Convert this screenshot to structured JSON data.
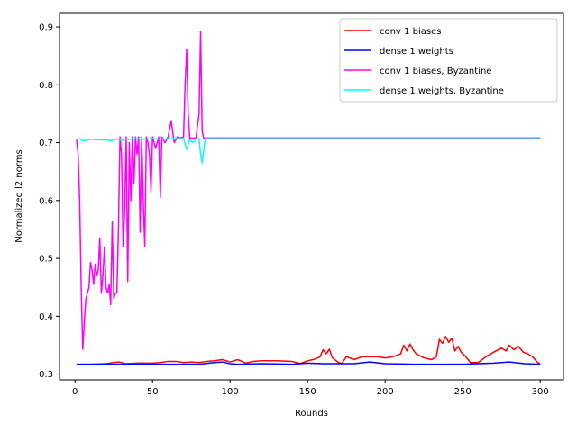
{
  "chart_data": {
    "type": "line",
    "title": "",
    "xlabel": "Rounds",
    "ylabel": "Normalized l2 norms",
    "xlim": [
      -10,
      315
    ],
    "ylim": [
      0.29,
      0.925
    ],
    "xticks": [
      0,
      50,
      100,
      150,
      200,
      250,
      300
    ],
    "yticks": [
      0.3,
      0.4,
      0.5,
      0.6,
      0.7,
      0.8,
      0.9
    ],
    "xtick_labels": [
      "0",
      "50",
      "100",
      "150",
      "200",
      "250",
      "300"
    ],
    "ytick_labels": [
      "0.3",
      "0.4",
      "0.5",
      "0.6",
      "0.7",
      "0.8",
      "0.9"
    ],
    "grid": false,
    "legend_position": "top-right",
    "series": [
      {
        "name": "conv 1 biases",
        "color": "#ff0000",
        "x": [
          1,
          10,
          20,
          28,
          30,
          32,
          40,
          50,
          55,
          60,
          65,
          70,
          75,
          80,
          85,
          90,
          95,
          100,
          105,
          110,
          115,
          120,
          130,
          140,
          145,
          150,
          155,
          158,
          160,
          162,
          164,
          166,
          170,
          172,
          175,
          180,
          185,
          190,
          195,
          200,
          205,
          210,
          212,
          214,
          216,
          218,
          220,
          225,
          230,
          233,
          235,
          237,
          239,
          241,
          243,
          245,
          247,
          249,
          252,
          255,
          260,
          265,
          270,
          275,
          278,
          280,
          283,
          286,
          289,
          292,
          295,
          298,
          300
        ],
        "y": [
          0.317,
          0.317,
          0.318,
          0.321,
          0.32,
          0.318,
          0.319,
          0.319,
          0.32,
          0.322,
          0.322,
          0.32,
          0.321,
          0.32,
          0.322,
          0.323,
          0.325,
          0.321,
          0.325,
          0.319,
          0.322,
          0.323,
          0.323,
          0.322,
          0.318,
          0.323,
          0.326,
          0.33,
          0.342,
          0.335,
          0.343,
          0.328,
          0.32,
          0.318,
          0.33,
          0.325,
          0.33,
          0.33,
          0.33,
          0.328,
          0.33,
          0.335,
          0.35,
          0.34,
          0.352,
          0.342,
          0.335,
          0.328,
          0.325,
          0.33,
          0.36,
          0.353,
          0.365,
          0.355,
          0.362,
          0.34,
          0.348,
          0.338,
          0.33,
          0.32,
          0.32,
          0.33,
          0.338,
          0.345,
          0.34,
          0.35,
          0.342,
          0.348,
          0.338,
          0.335,
          0.33,
          0.321,
          0.317
        ]
      },
      {
        "name": "dense 1 weights",
        "color": "#0000ff",
        "x": [
          1,
          20,
          40,
          60,
          80,
          90,
          95,
          100,
          105,
          120,
          140,
          150,
          160,
          180,
          190,
          200,
          220,
          250,
          270,
          280,
          290,
          300
        ],
        "y": [
          0.317,
          0.317,
          0.317,
          0.317,
          0.317,
          0.32,
          0.321,
          0.318,
          0.317,
          0.318,
          0.317,
          0.319,
          0.318,
          0.318,
          0.321,
          0.318,
          0.317,
          0.317,
          0.319,
          0.321,
          0.318,
          0.317
        ]
      },
      {
        "name": "conv 1 biases, Byzantine",
        "color": "#ff00ff",
        "x": [
          1,
          2,
          3,
          4,
          5,
          6,
          7,
          8,
          9,
          10,
          11,
          12,
          13,
          14,
          15,
          16,
          17,
          18,
          19,
          20,
          21,
          22,
          23,
          24,
          25,
          26,
          27,
          28,
          29,
          30,
          31,
          32,
          33,
          34,
          35,
          36,
          37,
          38,
          39,
          40,
          41,
          42,
          43,
          44,
          45,
          46,
          47,
          48,
          49,
          50,
          52,
          54,
          55,
          56,
          58,
          60,
          62,
          64,
          66,
          68,
          70,
          71,
          72,
          73,
          74,
          76,
          78,
          80,
          81,
          82,
          83,
          84,
          90,
          100,
          150,
          200,
          250,
          300
        ],
        "y": [
          0.705,
          0.68,
          0.6,
          0.45,
          0.343,
          0.39,
          0.43,
          0.44,
          0.45,
          0.493,
          0.48,
          0.455,
          0.49,
          0.47,
          0.48,
          0.535,
          0.44,
          0.47,
          0.52,
          0.45,
          0.44,
          0.455,
          0.42,
          0.563,
          0.43,
          0.44,
          0.44,
          0.55,
          0.71,
          0.68,
          0.52,
          0.58,
          0.71,
          0.46,
          0.7,
          0.6,
          0.71,
          0.63,
          0.71,
          0.68,
          0.71,
          0.545,
          0.71,
          0.6,
          0.52,
          0.71,
          0.7,
          0.68,
          0.615,
          0.71,
          0.69,
          0.71,
          0.605,
          0.71,
          0.7,
          0.71,
          0.738,
          0.7,
          0.71,
          0.708,
          0.71,
          0.8,
          0.862,
          0.75,
          0.708,
          0.708,
          0.708,
          0.75,
          0.892,
          0.72,
          0.708,
          0.708,
          0.708,
          0.708,
          0.708,
          0.708,
          0.708,
          0.708
        ]
      },
      {
        "name": "dense 1 weights, Byzantine",
        "color": "#00ffff",
        "x": [
          1,
          3,
          5,
          8,
          10,
          15,
          20,
          23,
          25,
          28,
          30,
          35,
          40,
          45,
          50,
          55,
          60,
          65,
          70,
          72,
          74,
          76,
          78,
          80,
          81,
          82,
          84,
          90,
          100,
          150,
          200,
          250,
          300
        ],
        "y": [
          0.706,
          0.707,
          0.703,
          0.705,
          0.706,
          0.705,
          0.705,
          0.703,
          0.705,
          0.706,
          0.704,
          0.706,
          0.707,
          0.706,
          0.707,
          0.706,
          0.707,
          0.707,
          0.707,
          0.688,
          0.706,
          0.7,
          0.707,
          0.707,
          0.68,
          0.665,
          0.707,
          0.707,
          0.707,
          0.707,
          0.707,
          0.707,
          0.707
        ]
      }
    ]
  }
}
